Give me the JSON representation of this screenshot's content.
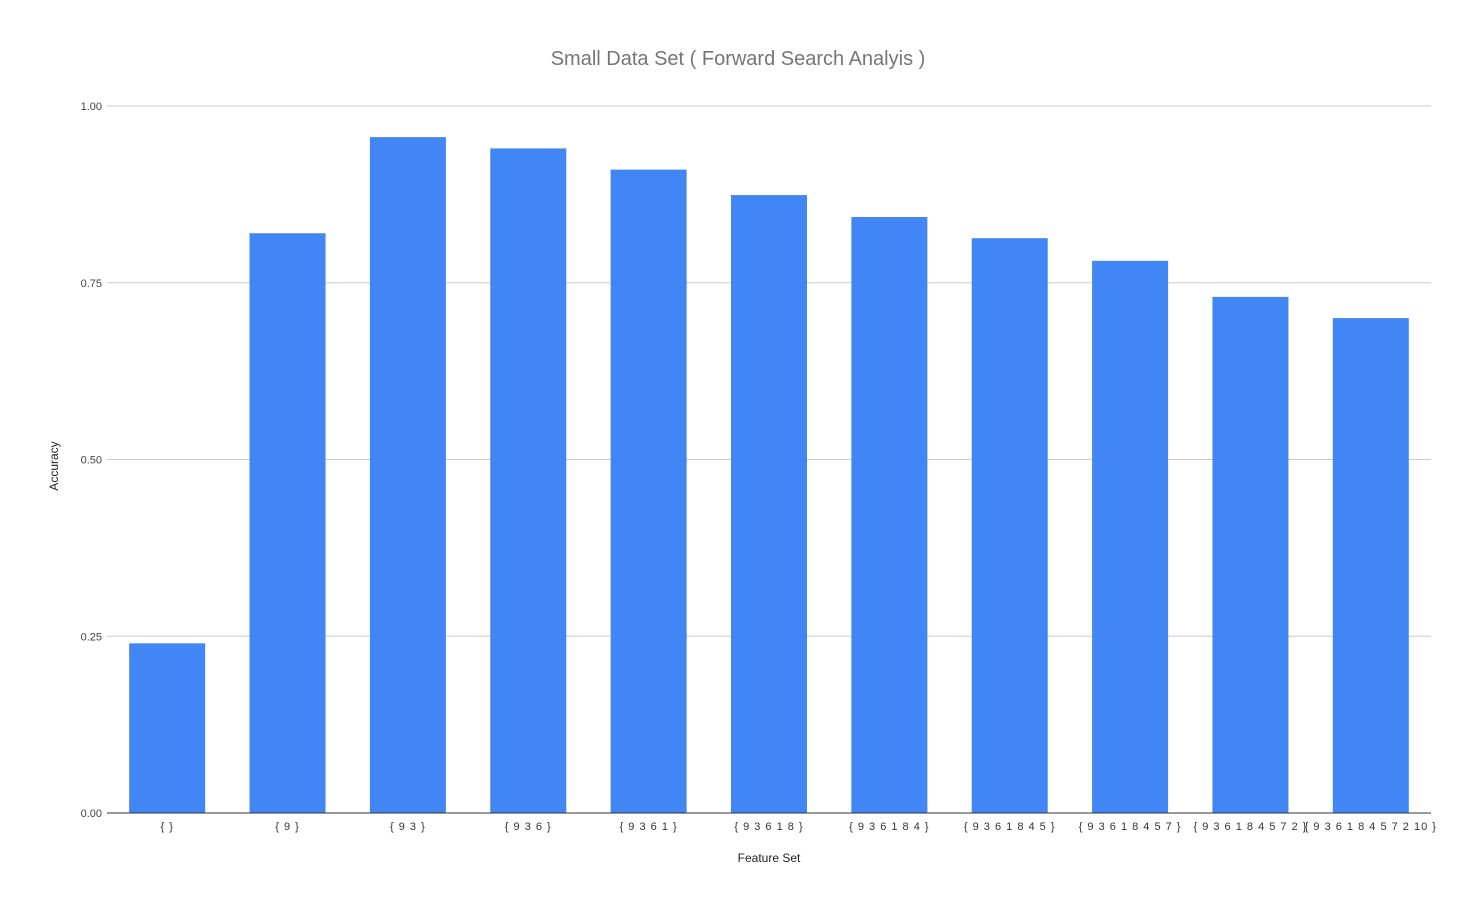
{
  "chart_data": {
    "type": "bar",
    "title": "Small Data Set ( Forward Search Analyis )",
    "xlabel": "Feature Set",
    "ylabel": "Accuracy",
    "ylim": [
      0,
      1
    ],
    "yticks": [
      "0.00",
      "0.25",
      "0.50",
      "0.75",
      "1.00"
    ],
    "grid": true,
    "legend": "none",
    "bar_color": "#4285f4",
    "categories": [
      "{ }",
      "{ 9 }",
      "{ 9 3 }",
      "{ 9 3 6 }",
      "{ 9 3 6 1 }",
      "{ 9 3 6 1 8 }",
      "{ 9 3 6 1 8 4 }",
      "{ 9 3 6 1 8 4 5 }",
      "{ 9 3 6 1 8 4 5 7 }",
      "{ 9 3 6 1 8 4 5 7 2 }",
      "{ 9 3 6 1 8 4 5 7 2 10 }"
    ],
    "values": [
      0.24,
      0.82,
      0.956,
      0.94,
      0.91,
      0.874,
      0.843,
      0.813,
      0.781,
      0.73,
      0.7
    ]
  }
}
